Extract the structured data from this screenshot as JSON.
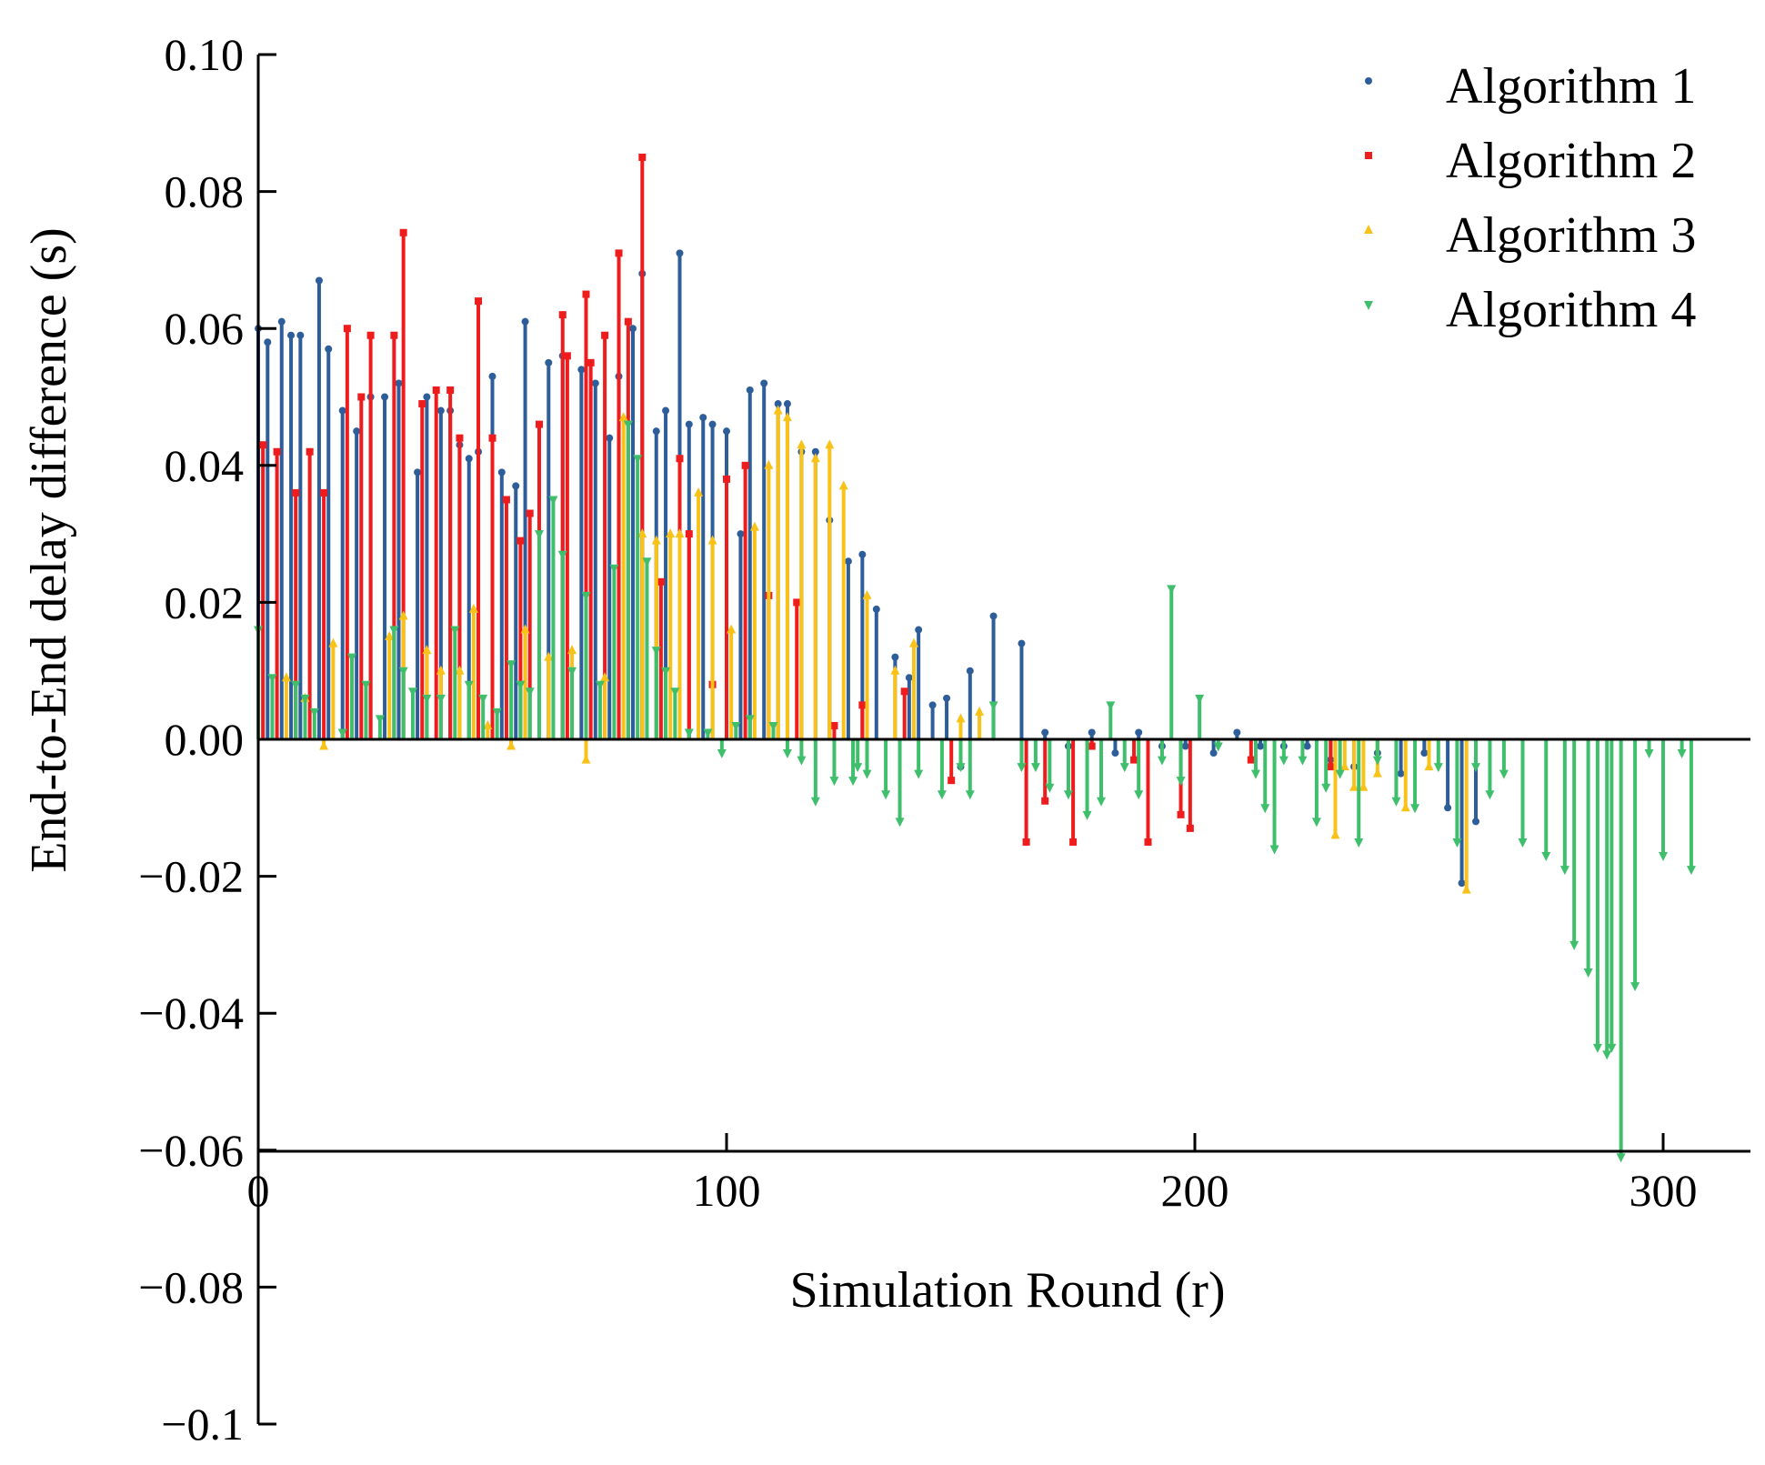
{
  "chart_data": {
    "type": "stem",
    "title": "",
    "xlabel": "Simulation Round (r)",
    "ylabel": "End-to-End delay difference (s)",
    "xlim": [
      0,
      320
    ],
    "ylim": [
      -0.1,
      0.1
    ],
    "x_ticks": [
      {
        "value": 0,
        "label": "0"
      },
      {
        "value": 100,
        "label": "100"
      },
      {
        "value": 200,
        "label": "200"
      },
      {
        "value": 300,
        "label": "300"
      }
    ],
    "y_ticks": [
      {
        "value": 0.1,
        "label": "0.10"
      },
      {
        "value": 0.08,
        "label": "0.08"
      },
      {
        "value": 0.06,
        "label": "0.06"
      },
      {
        "value": 0.04,
        "label": "0.04"
      },
      {
        "value": 0.02,
        "label": "0.02"
      },
      {
        "value": 0.0,
        "label": "0.00"
      },
      {
        "value": -0.02,
        "label": "−0.02"
      },
      {
        "value": -0.04,
        "label": "−0.04"
      },
      {
        "value": -0.06,
        "label": "−0.06"
      },
      {
        "value": -0.08,
        "label": "−0.08"
      },
      {
        "value": -0.1,
        "label": "−0.1"
      }
    ],
    "baseline": 0,
    "legend_position": "top-right",
    "series": [
      {
        "name": "Algorithm 1",
        "color": "#2e5e9a",
        "marker": "circle",
        "x": [
          0,
          2,
          5,
          7,
          9,
          13,
          15,
          18,
          21,
          24,
          27,
          30,
          34,
          36,
          39,
          41,
          43,
          45,
          47,
          50,
          52,
          55,
          57,
          62,
          65,
          69,
          72,
          75,
          77,
          80,
          82,
          85,
          87,
          90,
          92,
          95,
          97,
          100,
          103,
          105,
          108,
          111,
          113,
          116,
          119,
          122,
          126,
          129,
          132,
          136,
          139,
          141,
          144,
          147,
          150,
          152,
          157,
          163,
          168,
          173,
          178,
          183,
          188,
          193,
          198,
          204,
          209,
          214,
          219,
          224,
          229,
          234,
          239,
          244,
          249,
          254,
          257,
          260
        ],
        "y": [
          0.06,
          0.058,
          0.061,
          0.059,
          0.059,
          0.067,
          0.057,
          0.048,
          0.045,
          0.05,
          0.05,
          0.052,
          0.039,
          0.05,
          0.048,
          0.048,
          0.043,
          0.041,
          0.042,
          0.053,
          0.039,
          0.037,
          0.061,
          0.055,
          0.056,
          0.054,
          0.052,
          0.044,
          0.053,
          0.06,
          0.068,
          0.045,
          0.048,
          0.071,
          0.046,
          0.047,
          0.046,
          0.045,
          0.03,
          0.051,
          0.052,
          0.049,
          0.049,
          0.042,
          0.042,
          0.032,
          0.026,
          0.027,
          0.019,
          0.012,
          0.009,
          0.016,
          0.005,
          0.006,
          -0.004,
          0.01,
          0.018,
          0.014,
          0.001,
          -0.001,
          0.001,
          -0.002,
          0.001,
          -0.001,
          -0.001,
          -0.002,
          0.001,
          -0.001,
          -0.001,
          -0.001,
          -0.003,
          -0.004,
          -0.002,
          -0.005,
          -0.002,
          -0.01,
          -0.021,
          -0.012
        ]
      },
      {
        "name": "Algorithm 2",
        "color": "#ee1c1c",
        "marker": "square",
        "x": [
          1,
          4,
          8,
          11,
          14,
          19,
          22,
          24,
          29,
          31,
          35,
          38,
          41,
          43,
          47,
          50,
          53,
          56,
          58,
          60,
          65,
          66,
          70,
          71,
          74,
          77,
          79,
          82,
          86,
          90,
          92,
          97,
          100,
          104,
          109,
          115,
          123,
          129,
          138,
          148,
          164,
          168,
          174,
          178,
          187,
          190,
          197,
          199,
          212,
          229
        ],
        "y": [
          0.043,
          0.042,
          0.036,
          0.042,
          0.036,
          0.06,
          0.05,
          0.059,
          0.059,
          0.074,
          0.049,
          0.051,
          0.051,
          0.044,
          0.064,
          0.044,
          0.035,
          0.029,
          0.033,
          0.046,
          0.062,
          0.056,
          0.065,
          0.055,
          0.059,
          0.071,
          0.061,
          0.085,
          0.023,
          0.041,
          0.03,
          0.008,
          0.038,
          0.04,
          0.021,
          0.02,
          0.002,
          0.005,
          0.007,
          -0.006,
          -0.015,
          -0.009,
          -0.015,
          -0.001,
          -0.003,
          -0.015,
          -0.011,
          -0.013,
          -0.003,
          -0.004
        ]
      },
      {
        "name": "Algorithm 3",
        "color": "#f9c218",
        "marker": "triangle-up",
        "x": [
          6,
          10,
          14,
          16,
          28,
          31,
          36,
          39,
          43,
          46,
          49,
          54,
          57,
          62,
          67,
          70,
          74,
          78,
          82,
          85,
          88,
          90,
          94,
          97,
          101,
          106,
          109,
          111,
          113,
          116,
          119,
          122,
          125,
          130,
          136,
          140,
          150,
          154,
          230,
          232,
          234,
          236,
          239,
          245,
          250,
          258
        ],
        "y": [
          0.009,
          0.006,
          -0.001,
          0.014,
          0.015,
          0.018,
          0.013,
          0.01,
          0.01,
          0.019,
          0.002,
          -0.001,
          0.016,
          0.012,
          0.013,
          -0.003,
          0.009,
          0.047,
          0.03,
          0.029,
          0.03,
          0.03,
          0.036,
          0.029,
          0.016,
          0.031,
          0.04,
          0.048,
          0.047,
          0.043,
          0.041,
          0.043,
          0.037,
          0.021,
          0.01,
          0.014,
          0.003,
          0.004,
          -0.014,
          -0.004,
          -0.007,
          -0.007,
          -0.005,
          -0.01,
          -0.004,
          -0.022
        ]
      },
      {
        "name": "Algorithm 4",
        "color": "#3fbf6c",
        "marker": "triangle-down",
        "x": [
          0,
          3,
          8,
          10,
          12,
          18,
          20,
          23,
          26,
          29,
          31,
          33,
          36,
          39,
          42,
          45,
          48,
          51,
          54,
          56,
          58,
          60,
          63,
          65,
          67,
          70,
          73,
          76,
          79,
          81,
          83,
          85,
          87,
          89,
          92,
          96,
          99,
          102,
          105,
          110,
          113,
          116,
          119,
          123,
          127,
          128,
          130,
          134,
          137,
          141,
          146,
          150,
          152,
          157,
          163,
          166,
          169,
          173,
          177,
          180,
          182,
          185,
          188,
          193,
          195,
          197,
          201,
          205,
          213,
          215,
          217,
          219,
          223,
          226,
          228,
          231,
          235,
          239,
          243,
          247,
          252,
          256,
          260,
          263,
          266,
          270,
          275,
          279,
          281,
          284,
          286,
          288,
          289,
          291,
          294,
          297,
          300,
          304,
          306
        ],
        "y": [
          0.016,
          0.009,
          0.008,
          0.006,
          0.004,
          0.001,
          0.012,
          0.008,
          0.003,
          0.016,
          0.01,
          0.007,
          0.006,
          0.006,
          0.016,
          0.008,
          0.006,
          0.004,
          0.011,
          0.008,
          0.007,
          0.03,
          0.035,
          0.027,
          0.01,
          0.021,
          0.008,
          0.025,
          0.046,
          0.041,
          0.026,
          0.013,
          0.01,
          0.007,
          0.001,
          0.001,
          -0.002,
          0.002,
          0.003,
          0.002,
          -0.002,
          -0.003,
          -0.009,
          -0.006,
          -0.006,
          -0.004,
          -0.005,
          -0.008,
          -0.012,
          -0.005,
          -0.008,
          -0.004,
          -0.008,
          0.005,
          -0.004,
          -0.004,
          -0.007,
          -0.008,
          -0.011,
          -0.009,
          0.005,
          -0.004,
          -0.008,
          -0.003,
          0.022,
          -0.006,
          0.006,
          -0.001,
          -0.005,
          -0.01,
          -0.016,
          -0.003,
          -0.003,
          -0.012,
          -0.007,
          -0.005,
          -0.015,
          -0.003,
          -0.009,
          -0.01,
          -0.004,
          -0.015,
          -0.004,
          -0.008,
          -0.005,
          -0.015,
          -0.017,
          -0.019,
          -0.03,
          -0.034,
          -0.045,
          -0.046,
          -0.045,
          -0.061,
          -0.036,
          -0.002,
          -0.017,
          -0.002,
          -0.019
        ]
      }
    ]
  }
}
